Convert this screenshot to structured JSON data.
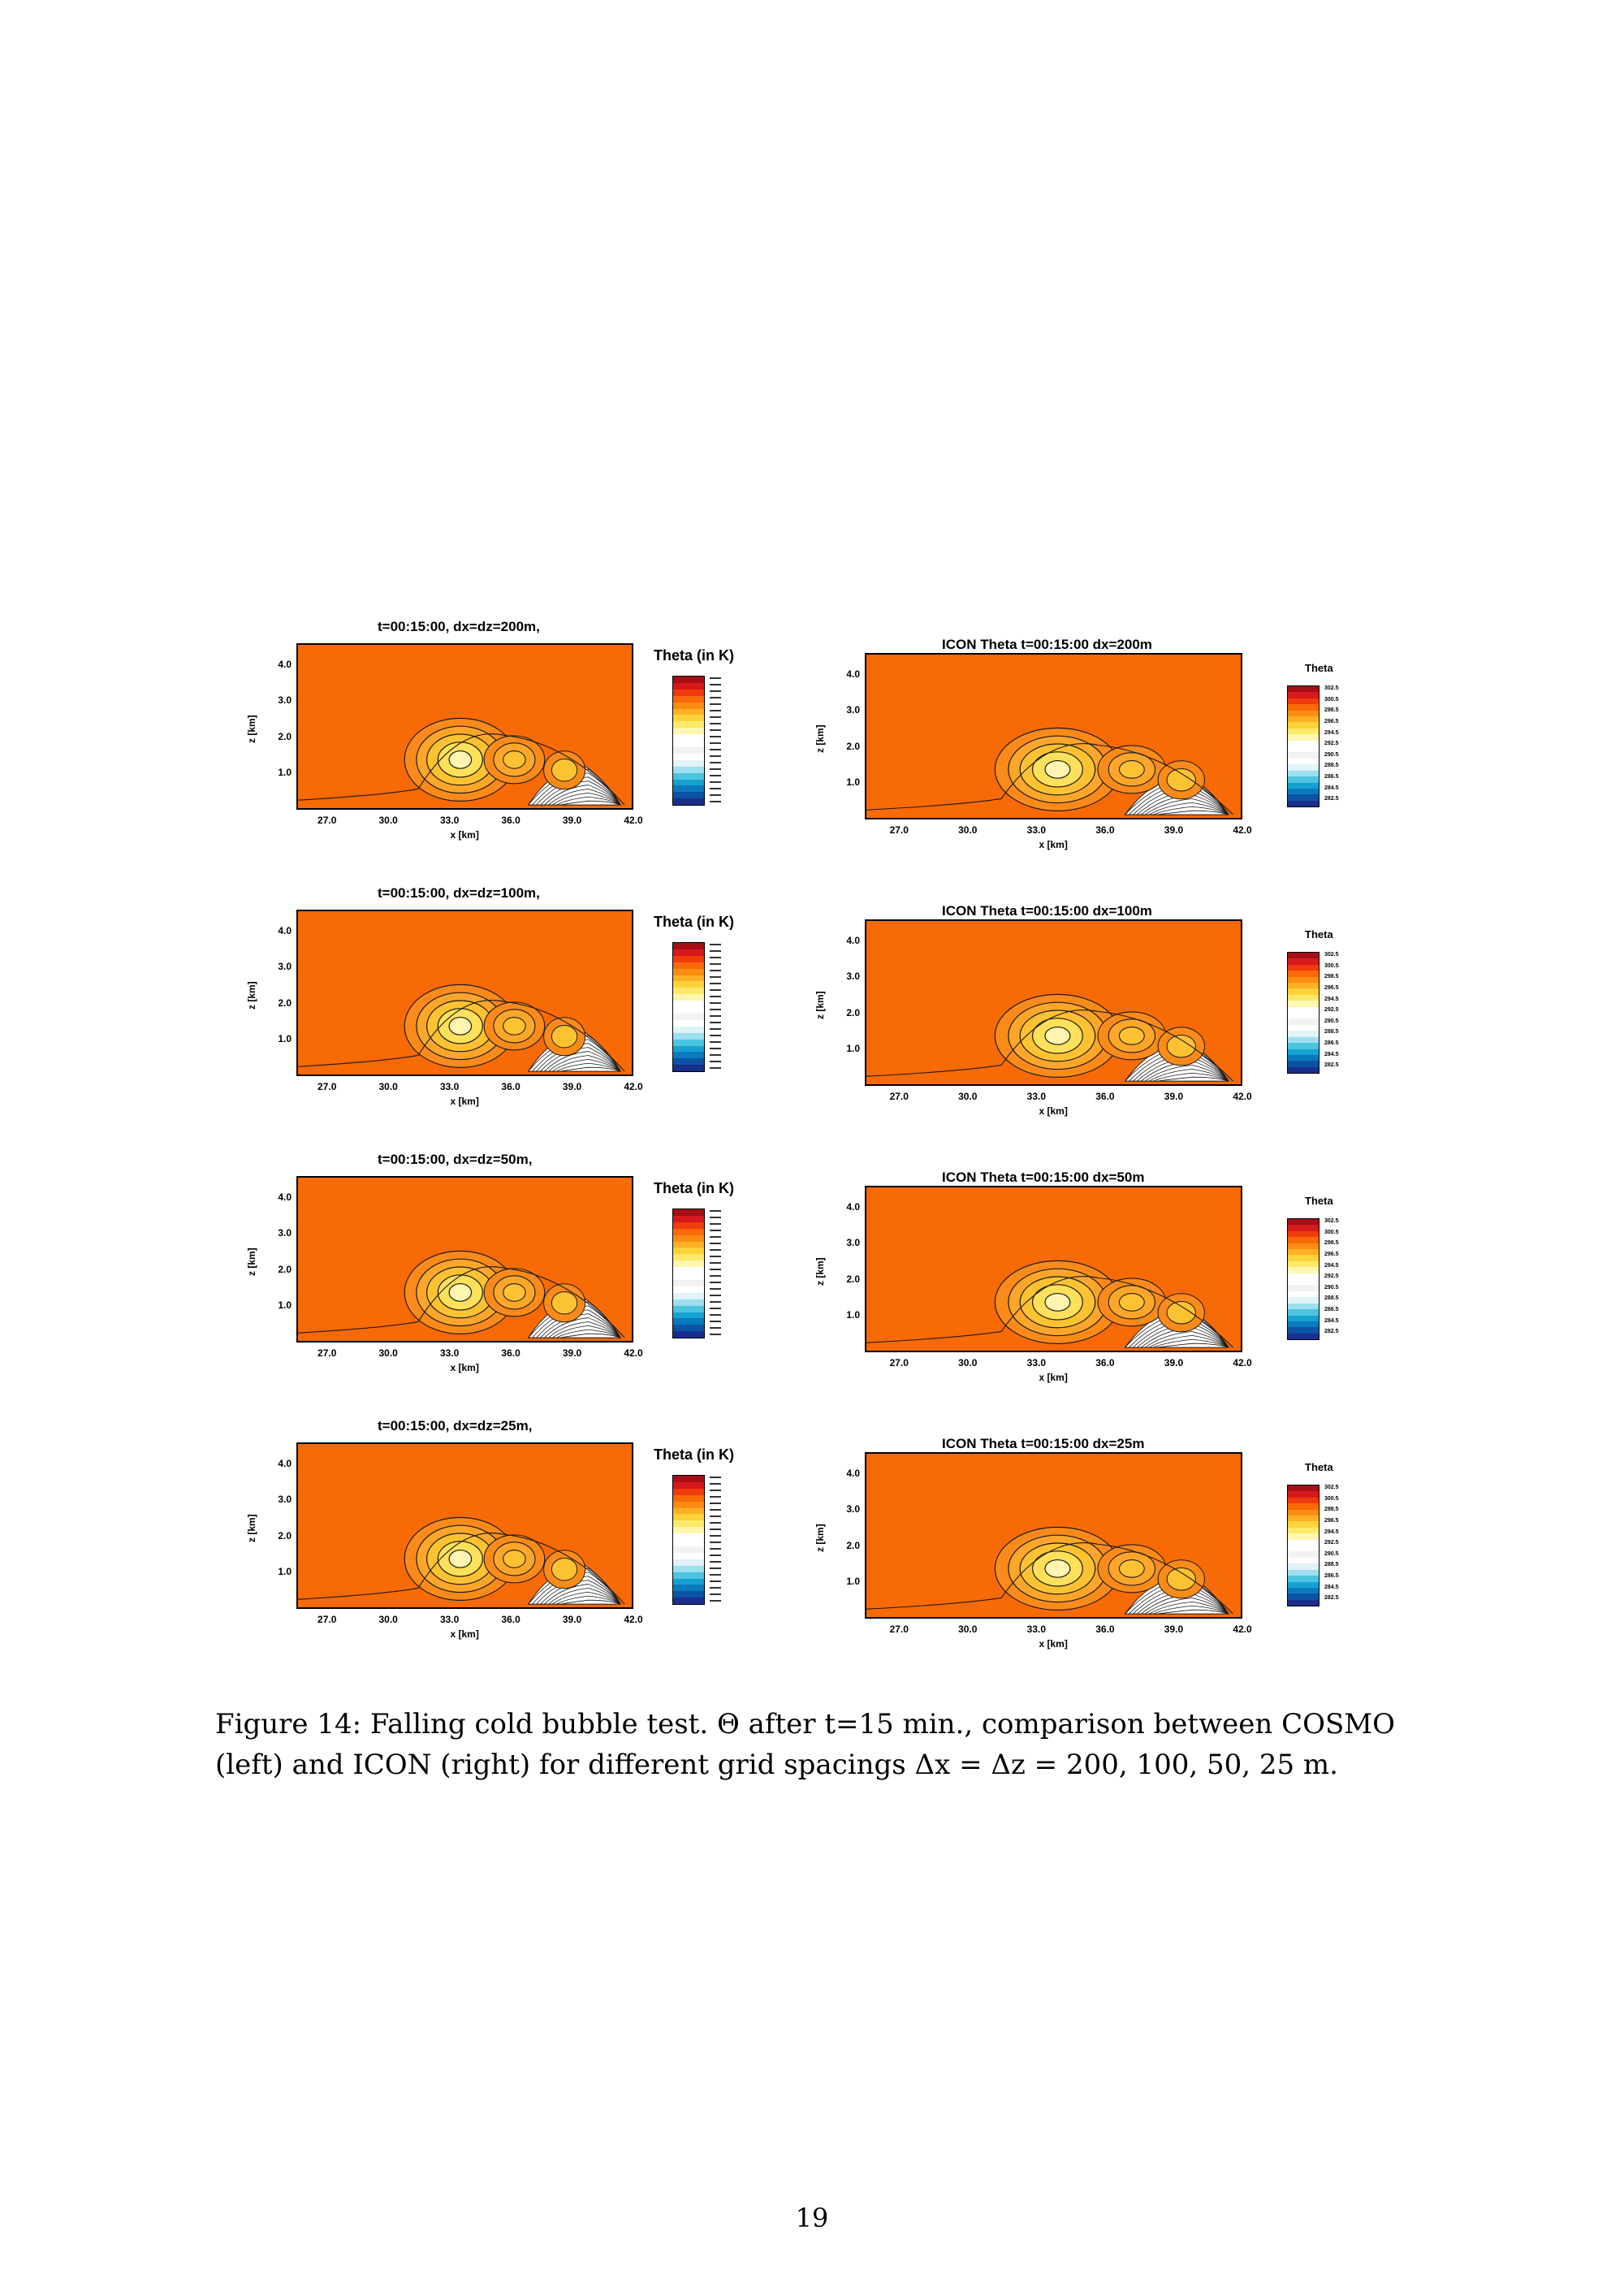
{
  "figure": {
    "caption_label": "Figure 14:",
    "caption_text": "Falling cold bubble test. Θ after t=15 min., comparison between COSMO (left) and ICON (right) for different grid spacings Δx = Δz = 200, 100, 50, 25 m.",
    "page_number": "19"
  },
  "colors": {
    "background_theta": "#f86a06",
    "contour": "#1a1a1a"
  },
  "colorbar": {
    "cosmo_title": "Theta (in K)",
    "icon_title": "Theta",
    "icon_ticks": [
      "302.5",
      "300.5",
      "298.5",
      "296.5",
      "294.5",
      "292.5",
      "290.5",
      "288.5",
      "286.5",
      "284.5",
      "282.5"
    ],
    "colors": [
      "#a50f15",
      "#d7191c",
      "#f03b0c",
      "#fb6a08",
      "#fd8d12",
      "#feb024",
      "#fed33a",
      "#fee96a",
      "#fff6b0",
      "#ffffff",
      "#ffffff",
      "#f2f2f2",
      "#ffffff",
      "#e0f3f8",
      "#9ddfee",
      "#4cc4e0",
      "#16a2d0",
      "#0a7abf",
      "#0c52a5",
      "#1a2f8c"
    ]
  },
  "panels": [
    {
      "model": "COSMO",
      "title": "t=00:15:00, dx=dz=200m,",
      "resolution_m": 200
    },
    {
      "model": "ICON",
      "title": "ICON Theta t=00:15:00 dx=200m",
      "resolution_m": 200
    },
    {
      "model": "COSMO",
      "title": "t=00:15:00, dx=dz=100m,",
      "resolution_m": 100
    },
    {
      "model": "ICON",
      "title": "ICON Theta t=00:15:00 dx=100m",
      "resolution_m": 100
    },
    {
      "model": "COSMO",
      "title": "t=00:15:00, dx=dz=50m,",
      "resolution_m": 50
    },
    {
      "model": "ICON",
      "title": "ICON Theta t=00:15:00 dx=50m",
      "resolution_m": 50
    },
    {
      "model": "COSMO",
      "title": "t=00:15:00, dx=dz=25m,",
      "resolution_m": 25
    },
    {
      "model": "ICON",
      "title": "ICON Theta t=00:15:00 dx=25m",
      "resolution_m": 25
    }
  ],
  "axes": {
    "xlabel": "x [km]",
    "ylabel": "z [km]",
    "xticks": [
      "27.0",
      "30.0",
      "33.0",
      "36.0",
      "39.0",
      "42.0"
    ],
    "yticks": [
      "4.0",
      "3.0",
      "2.0",
      "1.0"
    ],
    "xlim": [
      25.5,
      42.0
    ],
    "ylim": [
      0,
      4.6
    ]
  },
  "chart_data": {
    "type": "heatmap",
    "title": "",
    "xlabel": "x [km]",
    "ylabel": "z [km]",
    "variable": "Theta",
    "xlim": [
      25.5,
      42.0
    ],
    "ylim": [
      0,
      4.6
    ],
    "colorbar_ticks_K": [
      302.5,
      300.5,
      298.5,
      296.5,
      294.5,
      292.5,
      290.5,
      288.5,
      286.5,
      284.5,
      282.5
    ],
    "panels": [
      "t=00:15:00, dx=dz=200m,",
      "ICON Theta t=00:15:00 dx=200m",
      "t=00:15:00, dx=dz=100m,",
      "ICON Theta t=00:15:00 dx=100m",
      "t=00:15:00, dx=dz=50m,",
      "ICON Theta t=00:15:00 dx=50m",
      "t=00:15:00, dx=dz=25m,",
      "ICON Theta t=00:15:00 dx=25m"
    ]
  }
}
